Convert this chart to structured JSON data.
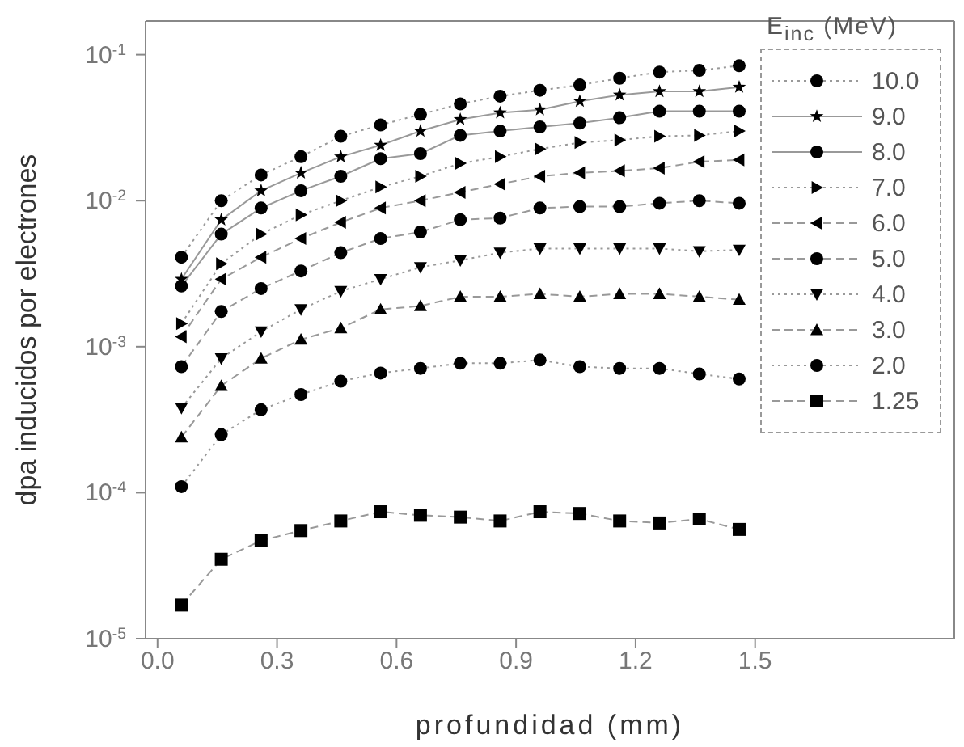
{
  "chart_data": {
    "type": "line",
    "xlabel": "profundidad (mm)",
    "ylabel": "dpa  inducidos por electrones",
    "legend_title": "E$_{inc}$ (MeV)",
    "legend": "top right",
    "log": "y",
    "x": [
      0.06,
      0.16,
      0.26,
      0.36,
      0.46,
      0.56,
      0.66,
      0.76,
      0.86,
      0.96,
      1.06,
      1.16,
      1.26,
      1.36,
      1.46
    ],
    "xlim": [
      -0.03,
      2.0
    ],
    "xticks": [
      {
        "value": 0,
        "label": "0.0"
      },
      0.3,
      0.6,
      0.9,
      1.2,
      1.5
    ],
    "ylim": [
      1e-05,
      0.17
    ],
    "yticks": [
      {
        "value": 0.1,
        "label": "10$^{-1}$"
      },
      {
        "value": 0.01,
        "label": "10$^{-2}$"
      },
      {
        "value": 0.001,
        "label": "10$^{-3}$"
      },
      {
        "value": 0.0001,
        "label": "10$^{-4}$"
      },
      {
        "value": 1e-05,
        "label": "10$^{-5}$"
      }
    ],
    "series": [
      {
        "name": "10.0",
        "color": "#000000",
        "marker": "circle",
        "line_style": "dotted",
        "values": [
          0.0041,
          0.01,
          0.015,
          0.02,
          0.0276,
          0.033,
          0.039,
          0.046,
          0.052,
          0.057,
          0.062,
          0.069,
          0.076,
          0.078,
          0.084
        ]
      },
      {
        "name": "9.0",
        "color": "#000000",
        "marker": "star",
        "line_style": "solid",
        "values": [
          0.0029,
          0.0074,
          0.0117,
          0.0155,
          0.02,
          0.024,
          0.03,
          0.036,
          0.04,
          0.042,
          0.048,
          0.053,
          0.056,
          0.056,
          0.06
        ]
      },
      {
        "name": "8.0",
        "color": "#000000",
        "marker": "circle",
        "line_style": "solid",
        "values": [
          0.0026,
          0.0059,
          0.0089,
          0.0117,
          0.0147,
          0.0194,
          0.021,
          0.028,
          0.03,
          0.032,
          0.034,
          0.037,
          0.041,
          0.041,
          0.041
        ]
      },
      {
        "name": "7.0",
        "color": "#000000",
        "marker": "triangle-right",
        "line_style": "dotted",
        "values": [
          0.00144,
          0.0037,
          0.0059,
          0.008,
          0.01,
          0.0124,
          0.0147,
          0.018,
          0.02,
          0.0226,
          0.025,
          0.026,
          0.0276,
          0.028,
          0.03
        ]
      },
      {
        "name": "6.0",
        "color": "#000000",
        "marker": "triangle-left",
        "line_style": "dashed",
        "values": [
          0.00117,
          0.0029,
          0.0041,
          0.0055,
          0.0071,
          0.0089,
          0.01,
          0.0114,
          0.013,
          0.0147,
          0.0155,
          0.016,
          0.0167,
          0.0185,
          0.019
        ]
      },
      {
        "name": "5.0",
        "color": "#000000",
        "marker": "circle",
        "line_style": "dashed",
        "values": [
          0.00073,
          0.00174,
          0.0025,
          0.0033,
          0.0044,
          0.0055,
          0.0061,
          0.0074,
          0.0076,
          0.0089,
          0.0091,
          0.0091,
          0.0096,
          0.01,
          0.0096
        ]
      },
      {
        "name": "4.0",
        "color": "#000000",
        "marker": "triangle-down",
        "line_style": "dotted",
        "values": [
          0.00038,
          0.00083,
          0.00127,
          0.0018,
          0.0024,
          0.0029,
          0.0035,
          0.0039,
          0.0044,
          0.0047,
          0.0047,
          0.0047,
          0.0047,
          0.0045,
          0.0046
        ]
      },
      {
        "name": "3.0",
        "color": "#000000",
        "marker": "triangle",
        "line_style": "dashed",
        "values": [
          0.00024,
          0.00054,
          0.00083,
          0.00112,
          0.00134,
          0.0018,
          0.0019,
          0.0022,
          0.0022,
          0.0023,
          0.0022,
          0.0023,
          0.0023,
          0.0022,
          0.0021
        ]
      },
      {
        "name": "2.0",
        "color": "#000000",
        "marker": "circle",
        "line_style": "dotted",
        "values": [
          0.00011,
          0.00025,
          0.00037,
          0.00047,
          0.00058,
          0.00066,
          0.00071,
          0.00077,
          0.00077,
          0.00081,
          0.00073,
          0.00071,
          0.00071,
          0.00065,
          0.0006
        ]
      },
      {
        "name": "1.25",
        "color": "#000000",
        "marker": "square",
        "line_style": "dashed",
        "values": [
          1.7e-05,
          3.5e-05,
          4.7e-05,
          5.5e-05,
          6.4e-05,
          7.4e-05,
          7e-05,
          6.8e-05,
          6.4e-05,
          7.4e-05,
          7.2e-05,
          6.4e-05,
          6.2e-05,
          6.6e-05,
          5.6e-05
        ]
      }
    ]
  }
}
